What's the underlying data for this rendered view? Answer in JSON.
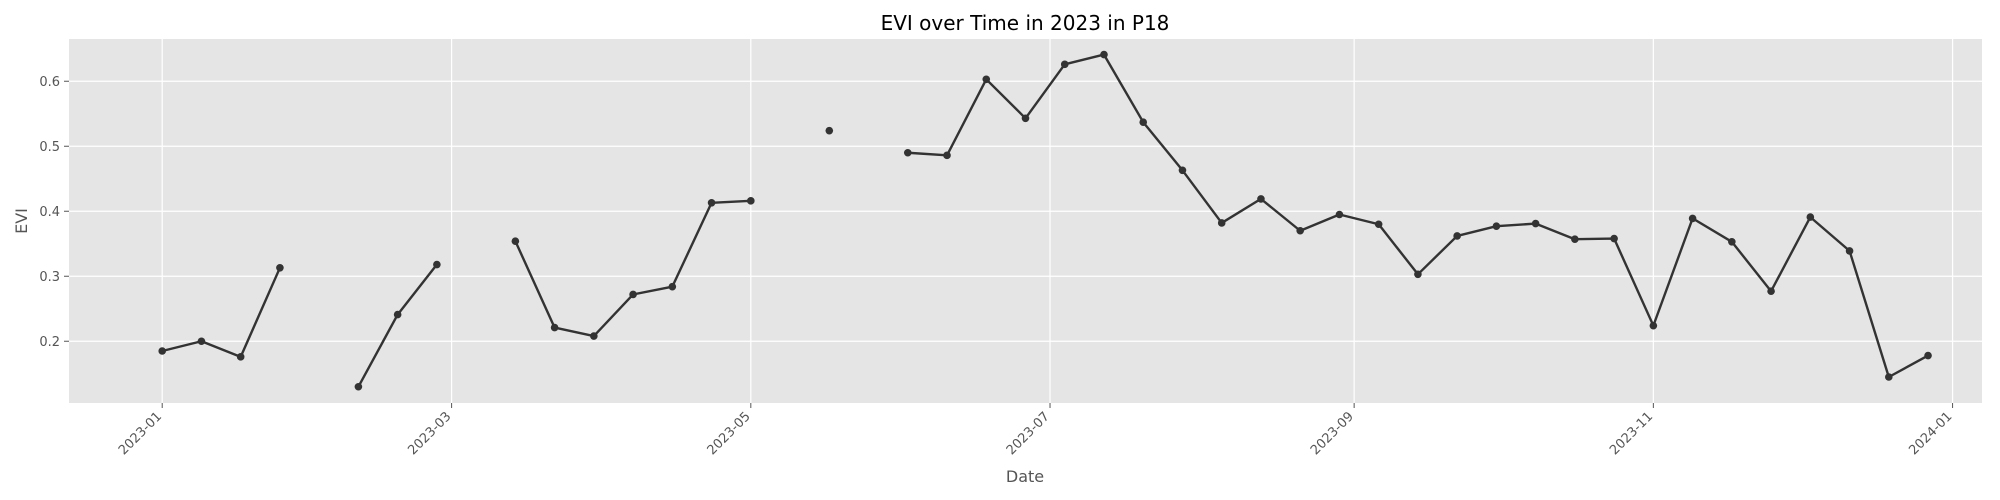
{
  "chart_data": {
    "type": "line",
    "title": "EVI over Time in 2023 in P18",
    "xlabel": "Date",
    "ylabel": "EVI",
    "xlim": [
      "2022-12-13",
      "2024-01-07"
    ],
    "ylim": [
      0.105,
      0.665
    ],
    "x_ticks": [
      "2023-01-01",
      "2023-03-01",
      "2023-05-01",
      "2023-07-01",
      "2023-09-01",
      "2023-11-01",
      "2024-01-01"
    ],
    "x_tick_labels": [
      "2023-01",
      "2023-03",
      "2023-05",
      "2023-07",
      "2023-09",
      "2023-11",
      "2024-01"
    ],
    "y_ticks": [
      0.2,
      0.3,
      0.4,
      0.5,
      0.6
    ],
    "y_tick_labels": [
      "0.2",
      "0.3",
      "0.4",
      "0.5",
      "0.6"
    ],
    "grid": true,
    "colors": {
      "plot_background": "#e5e5e5",
      "grid": "#ffffff",
      "line": "#333333",
      "marker": "#333333"
    },
    "series": [
      {
        "x": [
          "2023-01-01",
          "2023-01-09",
          "2023-01-17",
          "2023-01-25",
          "2023-02-02",
          "2023-02-10",
          "2023-02-18",
          "2023-02-26",
          "2023-03-06",
          "2023-03-14",
          "2023-03-22",
          "2023-03-30",
          "2023-04-07",
          "2023-04-15",
          "2023-04-23",
          "2023-05-01",
          "2023-05-09",
          "2023-05-17",
          "2023-05-25",
          "2023-06-02",
          "2023-06-10",
          "2023-06-18",
          "2023-06-26",
          "2023-07-04",
          "2023-07-12",
          "2023-07-20",
          "2023-07-28",
          "2023-08-05",
          "2023-08-13",
          "2023-08-21",
          "2023-08-29",
          "2023-09-06",
          "2023-09-14",
          "2023-09-22",
          "2023-09-30",
          "2023-10-08",
          "2023-10-16",
          "2023-10-24",
          "2023-11-01",
          "2023-11-09",
          "2023-11-17",
          "2023-11-25",
          "2023-12-03",
          "2023-12-11",
          "2023-12-19",
          "2023-12-27"
        ],
        "values": [
          0.185,
          0.2,
          0.176,
          0.313,
          null,
          0.13,
          0.241,
          0.318,
          null,
          0.354,
          0.221,
          0.208,
          0.272,
          0.284,
          0.413,
          0.416,
          null,
          0.524,
          null,
          0.49,
          0.486,
          0.603,
          0.543,
          0.626,
          0.641,
          0.537,
          0.463,
          0.382,
          0.419,
          0.37,
          0.395,
          0.38,
          0.303,
          0.362,
          0.377,
          0.381,
          0.357,
          0.358,
          0.224,
          0.389,
          0.353,
          0.277,
          0.391,
          0.339,
          0.145,
          0.178
        ]
      }
    ]
  }
}
